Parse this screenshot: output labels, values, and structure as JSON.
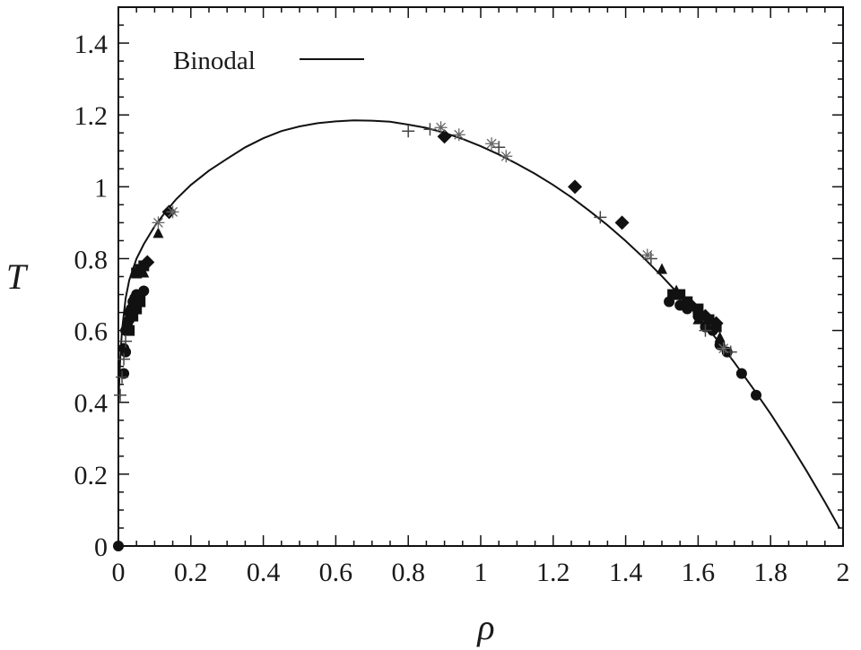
{
  "chart_data": {
    "type": "scatter",
    "title": "",
    "xlabel": "ρ",
    "ylabel": "T",
    "xlim": [
      0,
      2
    ],
    "ylim": [
      0,
      1.5
    ],
    "x_ticks": [
      "0",
      "0.2",
      "0.4",
      "0.6",
      "0.8",
      "1",
      "1.2",
      "1.4",
      "1.6",
      "1.8",
      "2"
    ],
    "y_ticks": [
      "0",
      "0.2",
      "0.4",
      "0.6",
      "0.8",
      "1",
      "1.2",
      "1.4"
    ],
    "x_tick_values": [
      0,
      0.2,
      0.4,
      0.6,
      0.8,
      1.0,
      1.2,
      1.4,
      1.6,
      1.8,
      2.0
    ],
    "y_tick_values": [
      0,
      0.2,
      0.4,
      0.6,
      0.8,
      1.0,
      1.2,
      1.4
    ],
    "grid": false,
    "legend": {
      "position": "top-left",
      "entries": [
        "Binodal"
      ]
    },
    "curve": {
      "name": "Binodal",
      "x": [
        0.0,
        0.005,
        0.01,
        0.02,
        0.03,
        0.05,
        0.07,
        0.1,
        0.13,
        0.16,
        0.2,
        0.25,
        0.3,
        0.35,
        0.4,
        0.45,
        0.5,
        0.55,
        0.6,
        0.65,
        0.7,
        0.75,
        0.8,
        0.85,
        0.9,
        0.95,
        1.0,
        1.05,
        1.1,
        1.15,
        1.2,
        1.25,
        1.3,
        1.35,
        1.4,
        1.45,
        1.5,
        1.55,
        1.6,
        1.65,
        1.7,
        1.75,
        1.8,
        1.85,
        1.9,
        1.95,
        1.99
      ],
      "y": [
        0.4,
        0.52,
        0.6,
        0.69,
        0.74,
        0.8,
        0.84,
        0.89,
        0.93,
        0.966,
        1.005,
        1.045,
        1.078,
        1.11,
        1.135,
        1.155,
        1.168,
        1.177,
        1.182,
        1.185,
        1.184,
        1.181,
        1.173,
        1.164,
        1.15,
        1.133,
        1.113,
        1.09,
        1.064,
        1.036,
        1.005,
        0.971,
        0.933,
        0.893,
        0.849,
        0.802,
        0.751,
        0.697,
        0.639,
        0.577,
        0.511,
        0.441,
        0.368,
        0.29,
        0.208,
        0.122,
        0.05
      ]
    },
    "series": [
      {
        "marker": "circle",
        "points": [
          [
            0.0,
            0.0
          ],
          [
            0.015,
            0.55
          ],
          [
            0.02,
            0.6
          ],
          [
            0.025,
            0.62
          ],
          [
            0.03,
            0.65
          ],
          [
            0.035,
            0.66
          ],
          [
            0.04,
            0.68
          ],
          [
            0.045,
            0.69
          ],
          [
            0.05,
            0.7
          ],
          [
            0.06,
            0.7
          ],
          [
            0.07,
            0.71
          ],
          [
            0.015,
            0.48
          ],
          [
            0.02,
            0.54
          ],
          [
            0.03,
            0.63
          ],
          [
            1.52,
            0.68
          ],
          [
            1.55,
            0.67
          ],
          [
            1.57,
            0.66
          ],
          [
            1.6,
            0.64
          ],
          [
            1.62,
            0.61
          ],
          [
            1.64,
            0.6
          ],
          [
            1.66,
            0.56
          ],
          [
            1.68,
            0.54
          ],
          [
            1.72,
            0.48
          ],
          [
            1.76,
            0.42
          ]
        ]
      },
      {
        "marker": "square",
        "points": [
          [
            0.03,
            0.6
          ],
          [
            0.04,
            0.64
          ],
          [
            0.05,
            0.66
          ],
          [
            0.06,
            0.68
          ],
          [
            0.05,
            0.76
          ],
          [
            0.06,
            0.77
          ],
          [
            0.07,
            0.78
          ],
          [
            1.53,
            0.7
          ],
          [
            1.55,
            0.7
          ],
          [
            1.57,
            0.68
          ],
          [
            1.6,
            0.66
          ],
          [
            1.63,
            0.63
          ],
          [
            1.65,
            0.61
          ]
        ]
      },
      {
        "marker": "diamond",
        "points": [
          [
            0.08,
            0.79
          ],
          [
            0.14,
            0.93
          ],
          [
            0.9,
            1.14
          ],
          [
            1.26,
            1.0
          ],
          [
            1.39,
            0.9
          ],
          [
            1.58,
            0.67
          ],
          [
            1.62,
            0.64
          ],
          [
            1.65,
            0.62
          ]
        ]
      },
      {
        "marker": "triangle",
        "points": [
          [
            0.07,
            0.76
          ],
          [
            0.11,
            0.87
          ],
          [
            1.5,
            0.77
          ],
          [
            1.54,
            0.71
          ],
          [
            1.6,
            0.63
          ],
          [
            1.66,
            0.58
          ]
        ]
      },
      {
        "marker": "plus",
        "points": [
          [
            0.005,
            0.42
          ],
          [
            0.01,
            0.47
          ],
          [
            0.015,
            0.52
          ],
          [
            0.02,
            0.57
          ],
          [
            0.8,
            1.155
          ],
          [
            0.86,
            1.16
          ],
          [
            1.05,
            1.11
          ],
          [
            1.33,
            0.915
          ],
          [
            1.47,
            0.8
          ],
          [
            1.62,
            0.6
          ],
          [
            1.69,
            0.54
          ]
        ]
      },
      {
        "marker": "star",
        "points": [
          [
            0.11,
            0.9
          ],
          [
            0.15,
            0.93
          ],
          [
            0.89,
            1.165
          ],
          [
            0.94,
            1.145
          ],
          [
            1.03,
            1.12
          ],
          [
            1.07,
            1.085
          ],
          [
            1.46,
            0.81
          ],
          [
            1.67,
            0.55
          ]
        ]
      }
    ]
  }
}
